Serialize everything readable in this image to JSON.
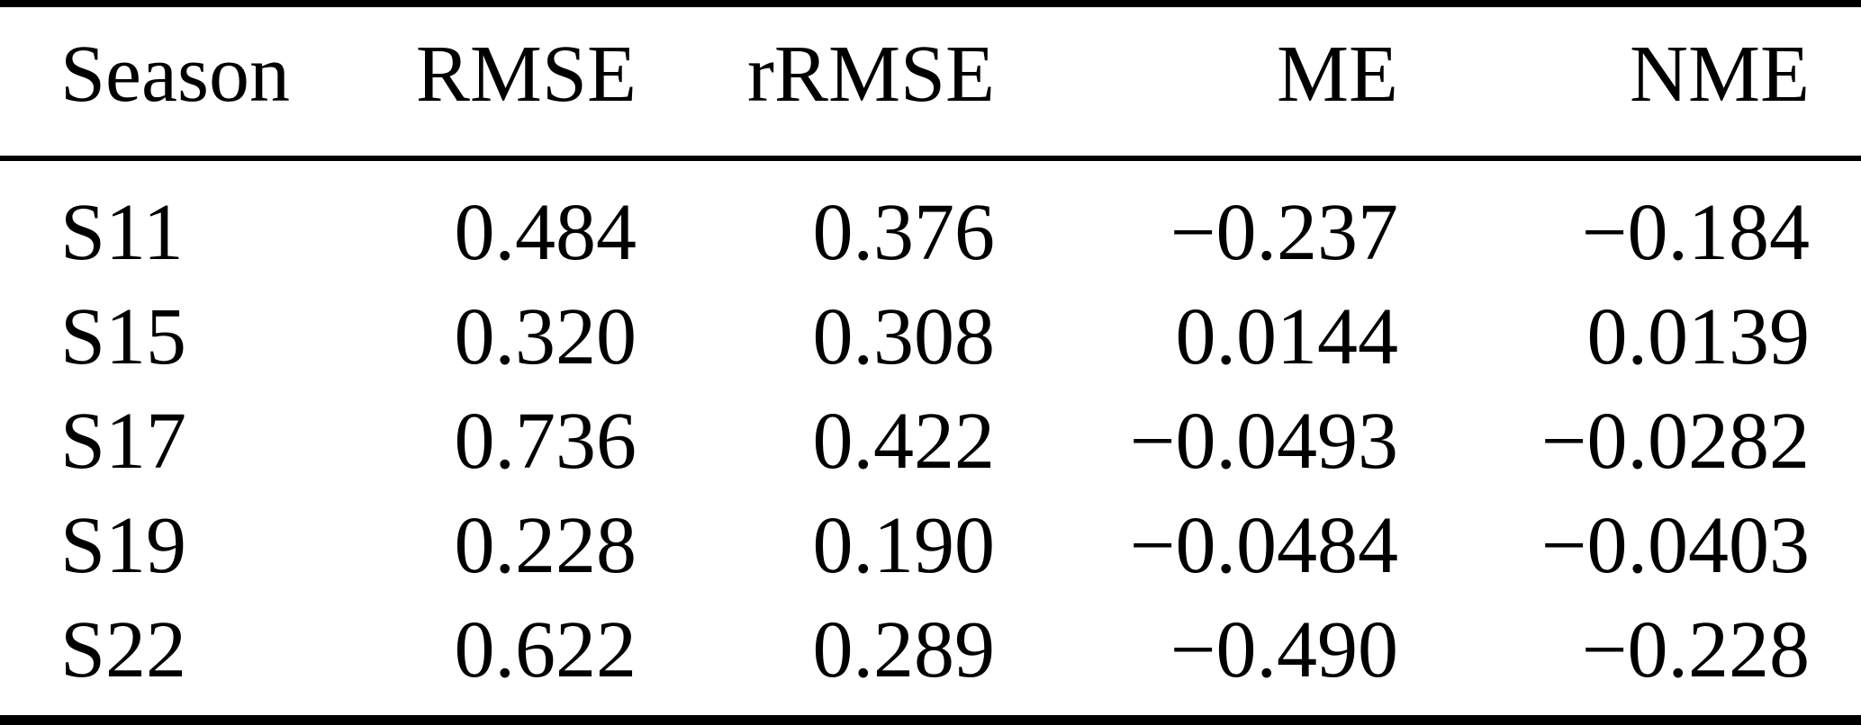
{
  "table": {
    "headers": [
      "Season",
      "RMSE",
      "rRMSE",
      "ME",
      "NME"
    ],
    "rows": [
      [
        "S11",
        "0.484",
        "0.376",
        "−0.237",
        "−0.184"
      ],
      [
        "S15",
        "0.320",
        "0.308",
        "0.0144",
        "0.0139"
      ],
      [
        "S17",
        "0.736",
        "0.422",
        "−0.0493",
        "−0.0282"
      ],
      [
        "S19",
        "0.228",
        "0.190",
        "−0.0484",
        "−0.0403"
      ],
      [
        "S22",
        "0.622",
        "0.289",
        "−0.490",
        "−0.228"
      ]
    ]
  },
  "colors": {
    "text": "#000000",
    "background": "#ffffff",
    "rule": "#000000"
  }
}
